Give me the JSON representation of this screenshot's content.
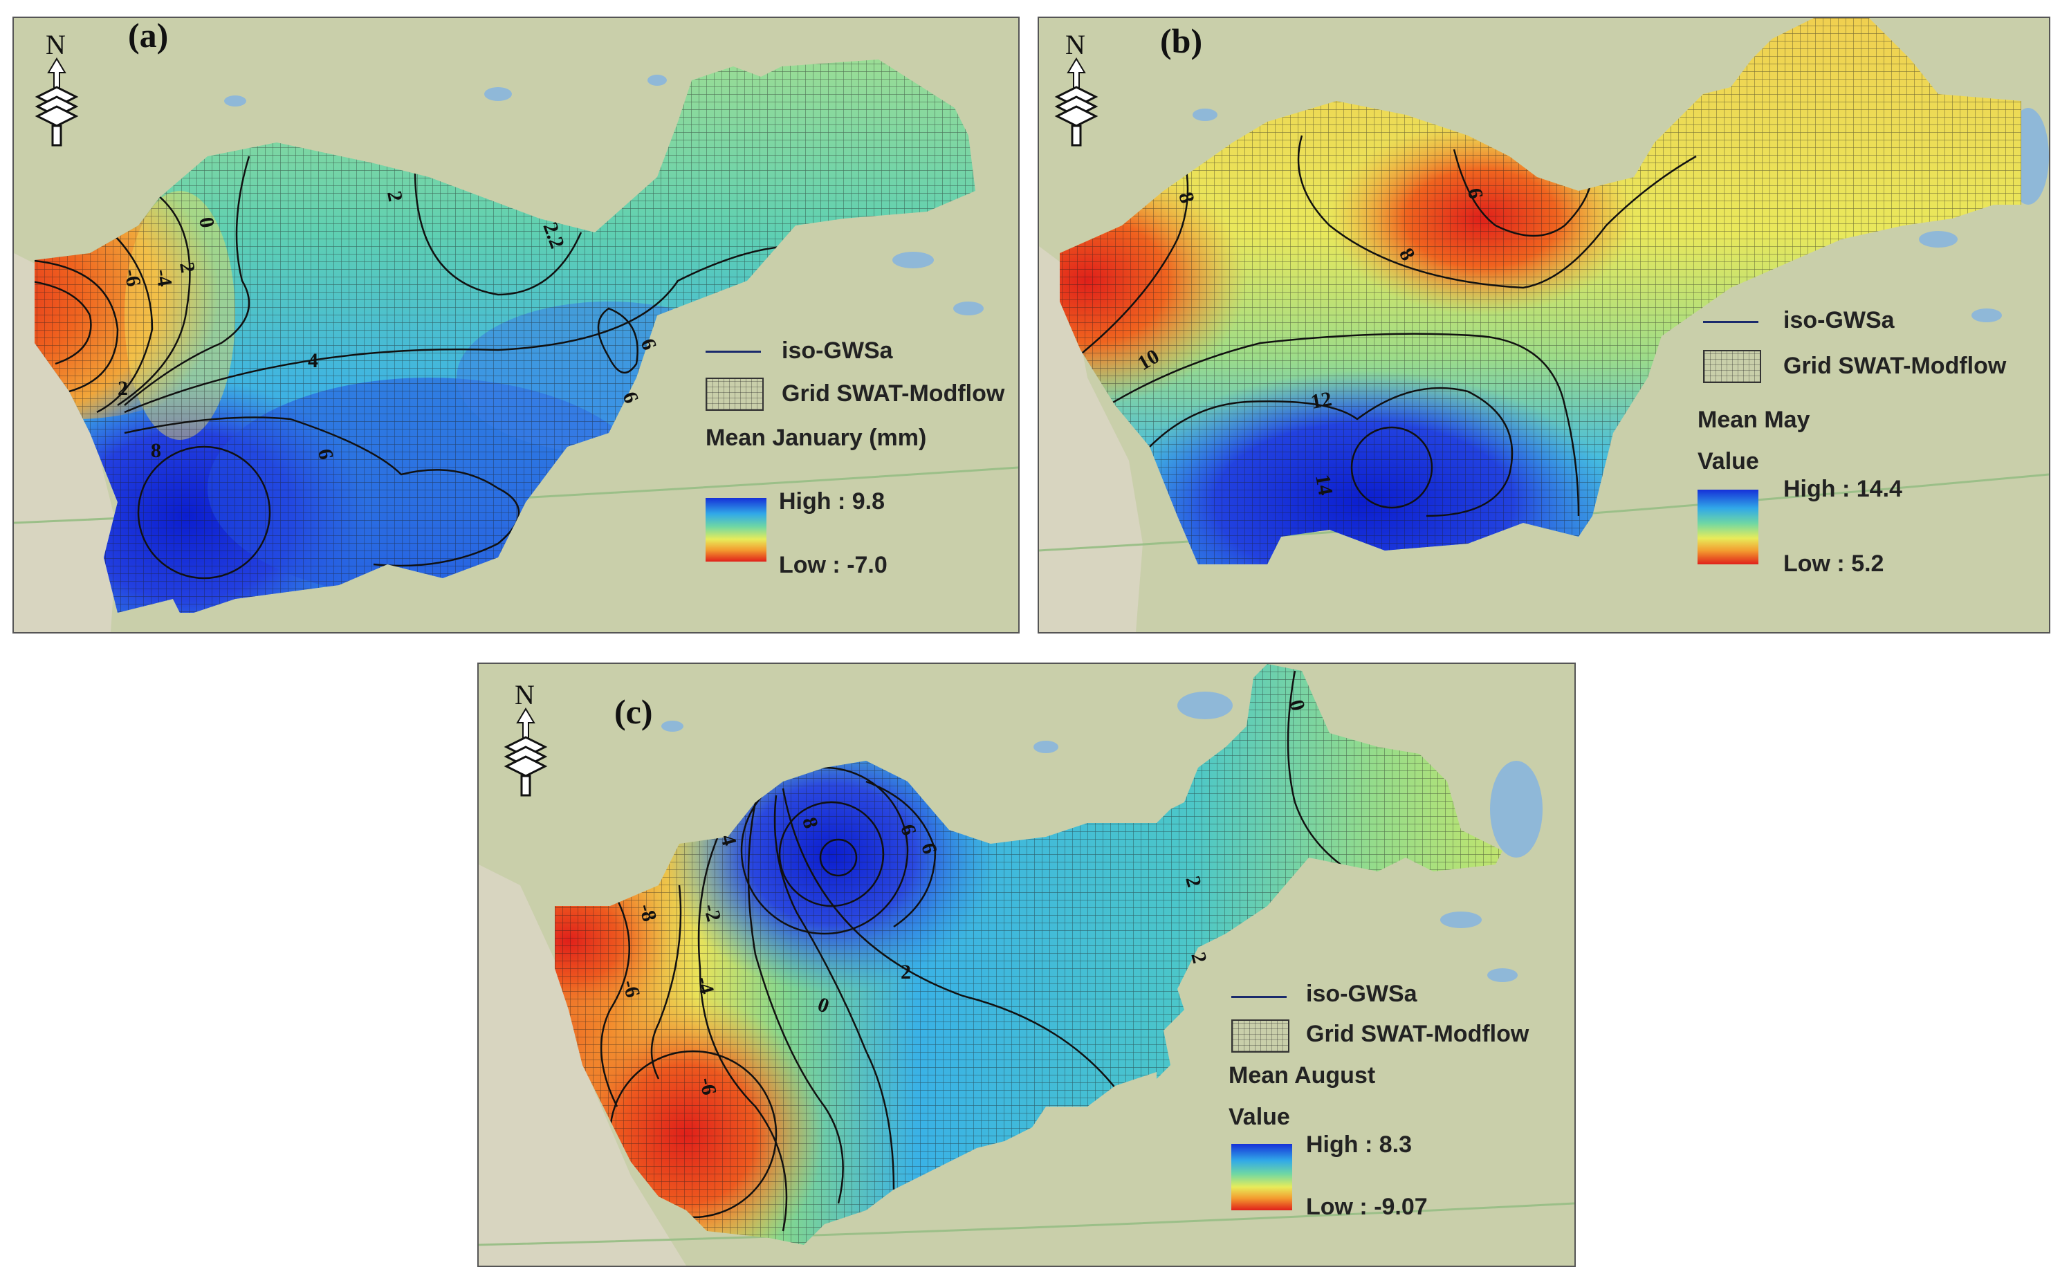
{
  "panels": [
    {
      "id": "a",
      "letter": "(a)",
      "north_label": "N",
      "legend": {
        "isoline_label": "iso-GWSa",
        "grid_label": "Grid SWAT-Modflow",
        "title": "Mean January (mm)",
        "subtitle": "",
        "high": "High : 9.8",
        "low": "Low : -7.0"
      },
      "contour_labels": [
        "0",
        "2",
        "-4",
        "-6",
        "2",
        "2",
        "2.2",
        "4",
        "6",
        "6",
        "8",
        "6"
      ]
    },
    {
      "id": "b",
      "letter": "(b)",
      "north_label": "N",
      "legend": {
        "isoline_label": "iso-GWSa",
        "grid_label": "Grid SWAT-Modflow",
        "title": "Mean May",
        "subtitle": "Value",
        "high": "High : 14.4",
        "low": "Low : 5.2"
      },
      "contour_labels": [
        "8",
        "6",
        "8",
        "10",
        "12",
        "14"
      ]
    },
    {
      "id": "c",
      "letter": "(c)",
      "north_label": "N",
      "legend": {
        "isoline_label": "iso-GWSa",
        "grid_label": "Grid SWAT-Modflow",
        "title": "Mean August",
        "subtitle": "Value",
        "high": "High : 8.3",
        "low": "Low : -9.07"
      },
      "contour_labels": [
        "-8",
        "-6",
        "-4",
        "-2",
        "-6",
        "0",
        "2",
        "4",
        "6",
        "8",
        "6",
        "0",
        "2",
        "2"
      ]
    }
  ],
  "colors": {
    "high": "#1530d8",
    "mid_blue": "#31a9e8",
    "mid_green": "#6fd7a4",
    "mid_yellow": "#e8ec5a",
    "mid_orange": "#f39b2f",
    "low": "#e0201a",
    "basemap": "#c9cfaa",
    "water": "#8fb8d8"
  }
}
